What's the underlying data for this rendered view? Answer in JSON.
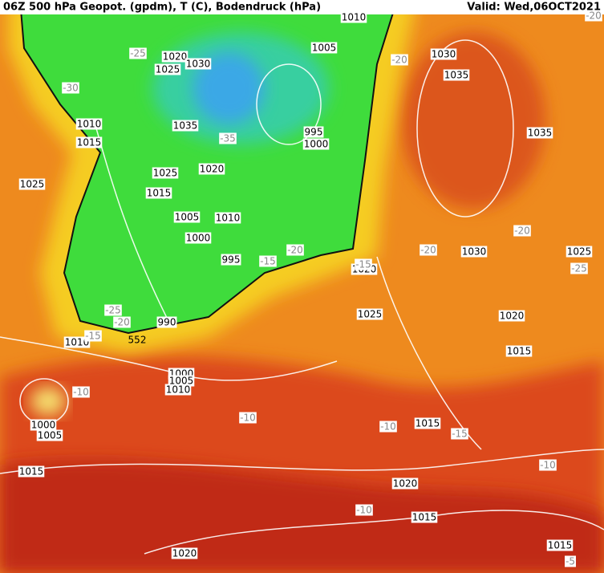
{
  "header": {
    "title": "06Z 500 hPa Geopot. (gpdm), T (C), Bodendruck (hPa)",
    "valid": "Valid: Wed,06OCT2021"
  },
  "isobar_labels": [
    1010,
    1005,
    1020,
    1030,
    1025,
    1030,
    1035,
    1010,
    1015,
    1035,
    995,
    1000,
    1035,
    1025,
    1020,
    1015,
    1025,
    1005,
    1010,
    1000,
    995,
    1030,
    1025,
    1020,
    1025,
    1020,
    990,
    1010,
    1015,
    1000,
    1005,
    1010,
    1000,
    1005,
    1015,
    1015,
    1020,
    1015,
    1015,
    1020
  ],
  "temperature_labels": [
    -20,
    -25,
    -30,
    -35,
    -20,
    -20,
    -20,
    -20,
    -15,
    -25,
    -15,
    -25,
    -20,
    -15,
    -10,
    -10,
    -10,
    -15,
    -10,
    -10,
    -5
  ],
  "geopotential_labels": [
    552
  ]
}
